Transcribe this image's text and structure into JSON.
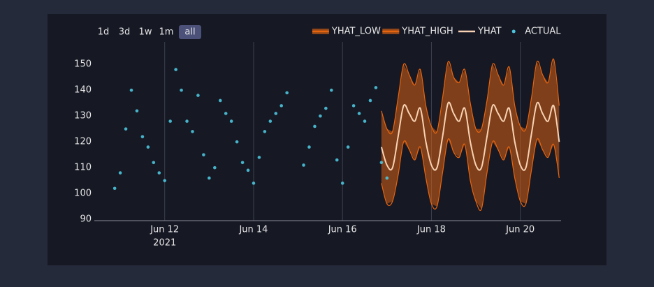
{
  "chart_data": {
    "type": "forecast",
    "range_buttons": [
      "1d",
      "3d",
      "1w",
      "1m",
      "all"
    ],
    "active_button": 4,
    "xlim": [
      "2021-06-10T10:00",
      "2021-06-20T22:00"
    ],
    "xticks": [
      {
        "value": "2021-06-12T00:00",
        "label": "Jun 12"
      },
      {
        "value": "2021-06-14T00:00",
        "label": "Jun 14"
      },
      {
        "value": "2021-06-16T00:00",
        "label": "Jun 16"
      },
      {
        "value": "2021-06-18T00:00",
        "label": "Jun 18"
      },
      {
        "value": "2021-06-20T00:00",
        "label": "Jun 20"
      }
    ],
    "x_year_label": "2021",
    "ylim": [
      89.5,
      158.7
    ],
    "yticks": [
      90,
      100,
      110,
      120,
      130,
      140,
      150
    ],
    "grid": "x",
    "series": [
      {
        "name": "YHAT_LOW",
        "color": "#e8650f",
        "kind": "line",
        "x": [
          "2021-06-16T21:00",
          "2021-06-17T00:00",
          "2021-06-17T03:00",
          "2021-06-17T06:00",
          "2021-06-17T09:00",
          "2021-06-17T12:00",
          "2021-06-17T15:00",
          "2021-06-17T18:00",
          "2021-06-17T21:00",
          "2021-06-18T00:00",
          "2021-06-18T03:00",
          "2021-06-18T06:00",
          "2021-06-18T09:00",
          "2021-06-18T12:00",
          "2021-06-18T15:00",
          "2021-06-18T18:00",
          "2021-06-18T21:00",
          "2021-06-19T00:00",
          "2021-06-19T03:00",
          "2021-06-19T06:00",
          "2021-06-19T09:00",
          "2021-06-19T12:00",
          "2021-06-19T15:00",
          "2021-06-19T18:00",
          "2021-06-19T21:00",
          "2021-06-20T00:00",
          "2021-06-20T03:00",
          "2021-06-20T06:00",
          "2021-06-20T09:00",
          "2021-06-20T12:00",
          "2021-06-20T15:00",
          "2021-06-20T18:00",
          "2021-06-20T21:00"
        ],
        "values": [
          104,
          96,
          97,
          107,
          120,
          117,
          113,
          118,
          106,
          96,
          95,
          108,
          121,
          116,
          114,
          119,
          105,
          97,
          94,
          108,
          120,
          117,
          113,
          118,
          106,
          97,
          96,
          109,
          121,
          117,
          114,
          119,
          106
        ]
      },
      {
        "name": "YHAT_HIGH",
        "color": "#e8650f",
        "kind": "line",
        "x": [
          "2021-06-16T21:00",
          "2021-06-17T00:00",
          "2021-06-17T03:00",
          "2021-06-17T06:00",
          "2021-06-17T09:00",
          "2021-06-17T12:00",
          "2021-06-17T15:00",
          "2021-06-17T18:00",
          "2021-06-17T21:00",
          "2021-06-18T00:00",
          "2021-06-18T03:00",
          "2021-06-18T06:00",
          "2021-06-18T09:00",
          "2021-06-18T12:00",
          "2021-06-18T15:00",
          "2021-06-18T18:00",
          "2021-06-18T21:00",
          "2021-06-19T00:00",
          "2021-06-19T03:00",
          "2021-06-19T06:00",
          "2021-06-19T09:00",
          "2021-06-19T12:00",
          "2021-06-19T15:00",
          "2021-06-19T18:00",
          "2021-06-19T21:00",
          "2021-06-20T00:00",
          "2021-06-20T03:00",
          "2021-06-20T06:00",
          "2021-06-20T09:00",
          "2021-06-20T12:00",
          "2021-06-20T15:00",
          "2021-06-20T18:00",
          "2021-06-20T21:00"
        ],
        "values": [
          132,
          125,
          124,
          137,
          150,
          146,
          142,
          148,
          134,
          126,
          124,
          137,
          151,
          145,
          143,
          148,
          135,
          125,
          125,
          136,
          150,
          146,
          142,
          149,
          134,
          126,
          125,
          137,
          151,
          146,
          143,
          152,
          134
        ]
      },
      {
        "name": "YHAT",
        "color": "#f7d2b3",
        "kind": "line",
        "x": [
          "2021-06-16T21:00",
          "2021-06-17T00:00",
          "2021-06-17T03:00",
          "2021-06-17T06:00",
          "2021-06-17T09:00",
          "2021-06-17T12:00",
          "2021-06-17T15:00",
          "2021-06-17T18:00",
          "2021-06-17T21:00",
          "2021-06-18T00:00",
          "2021-06-18T03:00",
          "2021-06-18T06:00",
          "2021-06-18T09:00",
          "2021-06-18T12:00",
          "2021-06-18T15:00",
          "2021-06-18T18:00",
          "2021-06-18T21:00",
          "2021-06-19T00:00",
          "2021-06-19T03:00",
          "2021-06-19T06:00",
          "2021-06-19T09:00",
          "2021-06-19T12:00",
          "2021-06-19T15:00",
          "2021-06-19T18:00",
          "2021-06-19T21:00",
          "2021-06-20T00:00",
          "2021-06-20T03:00",
          "2021-06-20T06:00",
          "2021-06-20T09:00",
          "2021-06-20T12:00",
          "2021-06-20T15:00",
          "2021-06-20T18:00",
          "2021-06-20T21:00"
        ],
        "values": [
          118,
          111,
          110,
          122,
          134,
          131,
          128,
          133,
          120,
          111,
          110,
          122,
          135,
          131,
          128,
          133,
          120,
          111,
          110,
          122,
          134,
          131,
          128,
          133,
          120,
          111,
          110,
          123,
          135,
          131,
          128,
          134,
          120
        ]
      },
      {
        "name": "ACTUAL",
        "color": "#4cc4dc",
        "kind": "points",
        "x": [
          "2021-06-10T21:00",
          "2021-06-11T00:00",
          "2021-06-11T03:00",
          "2021-06-11T06:00",
          "2021-06-11T09:00",
          "2021-06-11T12:00",
          "2021-06-11T15:00",
          "2021-06-11T18:00",
          "2021-06-11T21:00",
          "2021-06-12T00:00",
          "2021-06-12T03:00",
          "2021-06-12T06:00",
          "2021-06-12T09:00",
          "2021-06-12T12:00",
          "2021-06-12T15:00",
          "2021-06-12T18:00",
          "2021-06-12T21:00",
          "2021-06-13T00:00",
          "2021-06-13T03:00",
          "2021-06-13T06:00",
          "2021-06-13T09:00",
          "2021-06-13T12:00",
          "2021-06-13T15:00",
          "2021-06-13T18:00",
          "2021-06-13T21:00",
          "2021-06-14T00:00",
          "2021-06-14T03:00",
          "2021-06-14T06:00",
          "2021-06-14T09:00",
          "2021-06-14T12:00",
          "2021-06-14T15:00",
          "2021-06-14T18:00",
          "2021-06-15T03:00",
          "2021-06-15T06:00",
          "2021-06-15T09:00",
          "2021-06-15T12:00",
          "2021-06-15T15:00",
          "2021-06-15T18:00",
          "2021-06-15T21:00",
          "2021-06-16T00:00",
          "2021-06-16T03:00",
          "2021-06-16T06:00",
          "2021-06-16T09:00",
          "2021-06-16T12:00",
          "2021-06-16T15:00",
          "2021-06-16T18:00",
          "2021-06-16T21:00",
          "2021-06-17T00:00"
        ],
        "values": [
          102,
          108,
          125,
          140,
          132,
          122,
          118,
          112,
          108,
          105,
          128,
          148,
          140,
          128,
          124,
          138,
          115,
          106,
          110,
          136,
          131,
          128,
          120,
          112,
          109,
          104,
          114,
          124,
          128,
          131,
          134,
          139,
          111,
          118,
          126,
          130,
          133,
          140,
          113,
          104,
          118,
          134,
          131,
          128,
          136,
          141,
          112,
          106
        ]
      }
    ]
  }
}
